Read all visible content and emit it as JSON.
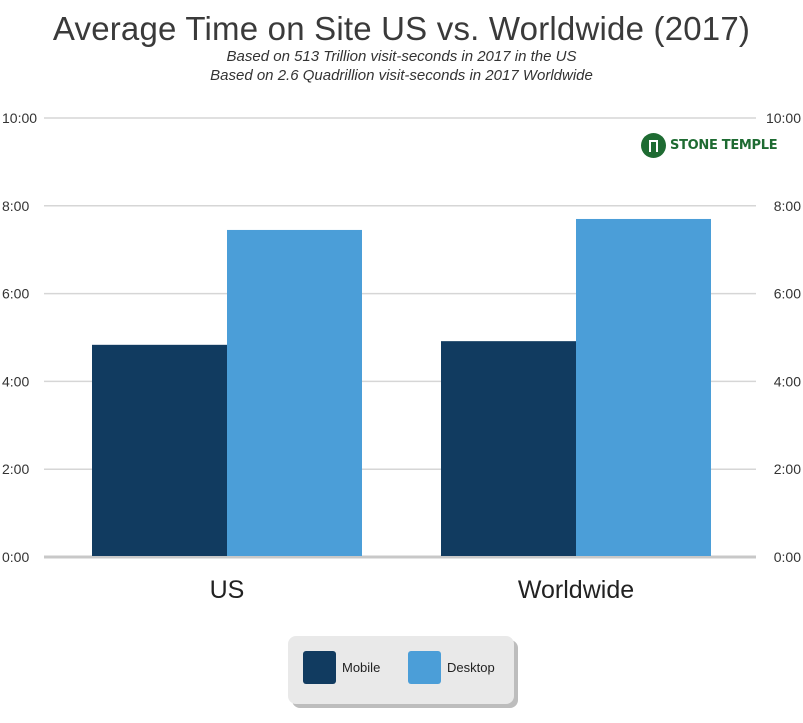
{
  "title": "Average Time on Site US vs. Worldwide (2017)",
  "subtitles": [
    "Based on 513 Trillion visit-seconds in 2017 in the US",
    "Based on 2.6 Quadrillion visit-seconds in 2017 Worldwide"
  ],
  "logo": {
    "text": "STONE TEMPLE",
    "icon": "stone-temple-logo-icon",
    "color": "#1e6b32"
  },
  "chart_data": {
    "type": "bar",
    "title": "Average Time on Site US vs. Worldwide (2017)",
    "categories": [
      "US",
      "Worldwide"
    ],
    "series": [
      {
        "name": "Mobile",
        "color": "#113b60",
        "values": [
          290,
          295
        ]
      },
      {
        "name": "Desktop",
        "color": "#4b9ed8",
        "values": [
          447,
          462
        ]
      }
    ],
    "value_unit": "seconds",
    "ylim": [
      0,
      600
    ],
    "yticks": [
      0,
      120,
      240,
      360,
      480,
      600
    ],
    "ytick_labels": [
      "0:00",
      "2:00",
      "4:00",
      "6:00",
      "8:00",
      "10:00"
    ],
    "y_axis_sides": "left and right",
    "grid": true,
    "legend_position": "bottom-center",
    "xlabel": "",
    "ylabel": ""
  }
}
